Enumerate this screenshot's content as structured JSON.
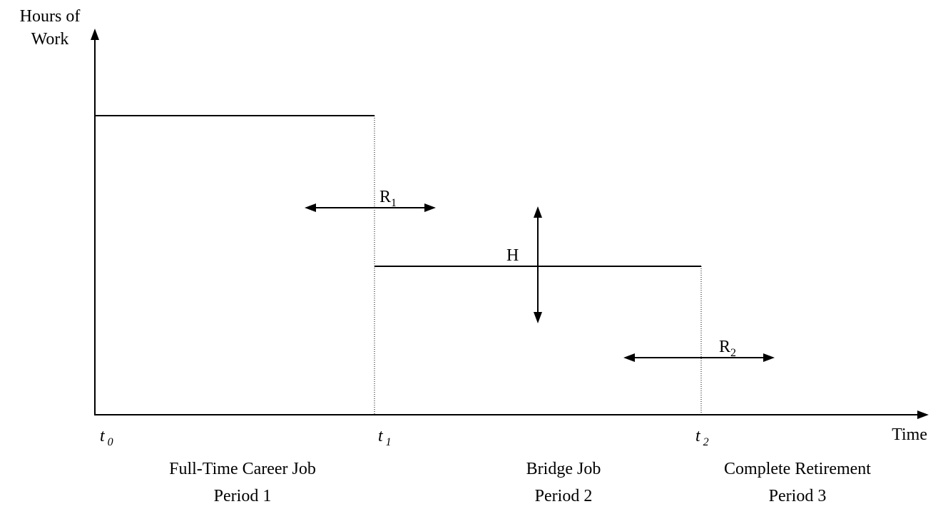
{
  "axes": {
    "y_label": [
      "Hours of",
      "Work"
    ],
    "x_label": "Time"
  },
  "time_points": [
    {
      "symbol": "t",
      "subscript": "0"
    },
    {
      "symbol": "t",
      "subscript": "1"
    },
    {
      "symbol": "t",
      "subscript": "2"
    }
  ],
  "arrows": [
    {
      "symbol": "R",
      "subscript": "1"
    },
    {
      "symbol": "H"
    },
    {
      "symbol": "R",
      "subscript": "2"
    }
  ],
  "periods": [
    {
      "name": "Full-Time Career Job",
      "label": "Period 1"
    },
    {
      "name": "Bridge Job",
      "label": "Period 2"
    },
    {
      "name": "Complete Retirement",
      "label": "Period 3"
    }
  ]
}
